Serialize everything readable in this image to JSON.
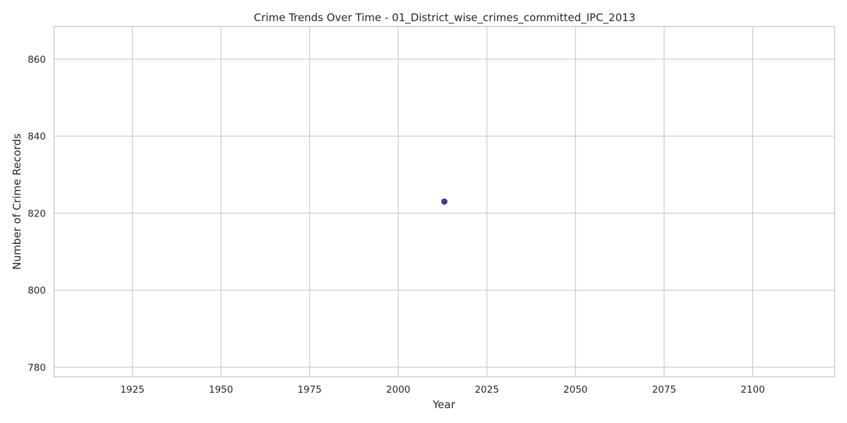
{
  "chart_data": {
    "type": "scatter",
    "title": "Crime Trends Over Time - 01_District_wise_crimes_committed_IPC_2013",
    "xlabel": "Year",
    "ylabel": "Number of Crime Records",
    "xlim": [
      1903,
      2123
    ],
    "ylim": [
      777.6,
      868.4
    ],
    "xticks": [
      1925,
      1950,
      1975,
      2000,
      2025,
      2050,
      2075,
      2100
    ],
    "yticks": [
      780,
      800,
      820,
      840,
      860
    ],
    "grid": true,
    "series": [
      {
        "color": "#483d8b",
        "points": [
          {
            "x": 2013,
            "y": 823
          }
        ]
      }
    ]
  }
}
